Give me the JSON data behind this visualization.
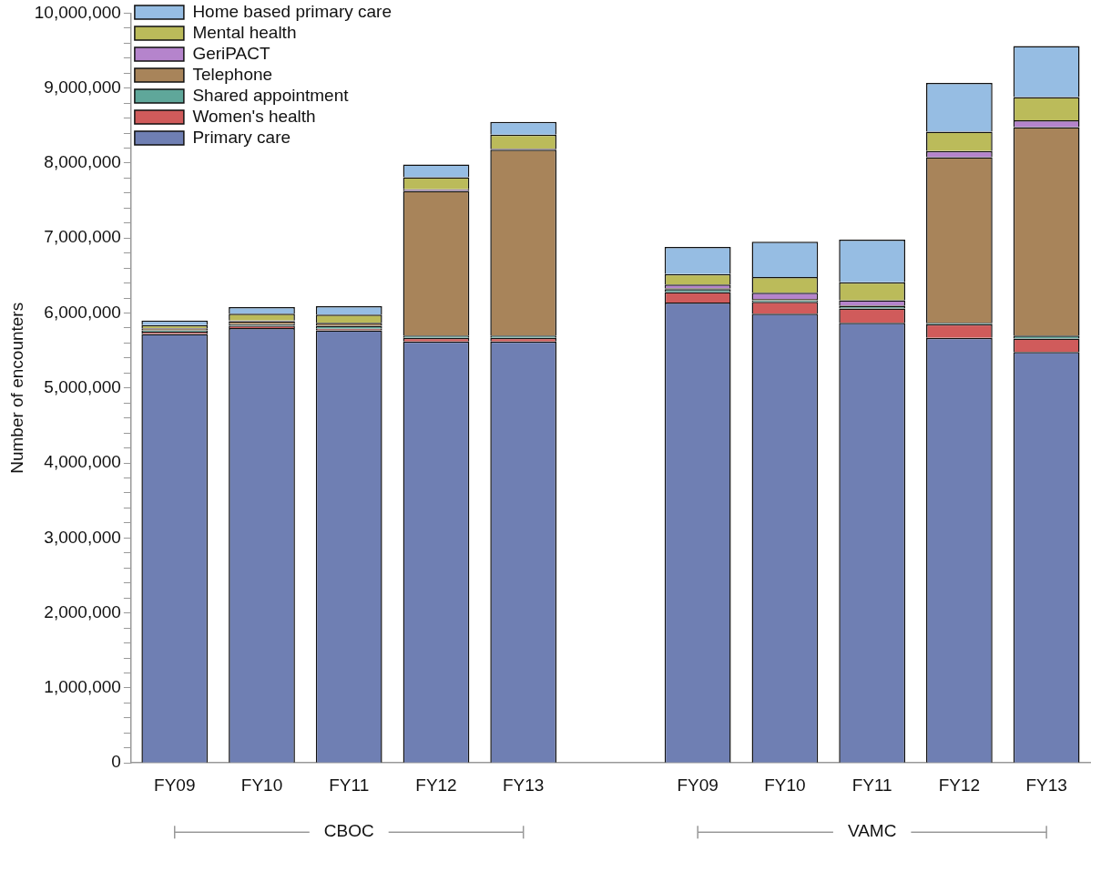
{
  "chart_data": {
    "type": "bar",
    "stacked": true,
    "ylabel": "Number of encounters",
    "categories": [
      "FY09",
      "FY10",
      "FY11",
      "FY12",
      "FY13",
      null,
      "FY09",
      "FY10",
      "FY11",
      "FY12",
      "FY13"
    ],
    "series": [
      {
        "name": "Primary care",
        "color": "#6f7fb3",
        "values": [
          5720000,
          5800000,
          5770000,
          5620000,
          5620000,
          null,
          6140000,
          5990000,
          5870000,
          5670000,
          5480000
        ]
      },
      {
        "name": "Women's health",
        "color": "#d05b5b",
        "values": [
          30000,
          30000,
          20000,
          50000,
          50000,
          null,
          140000,
          160000,
          190000,
          180000,
          180000
        ]
      },
      {
        "name": "Shared appointment",
        "color": "#5fa79a",
        "values": [
          20000,
          20000,
          40000,
          30000,
          30000,
          null,
          40000,
          20000,
          30000,
          20000,
          40000
        ]
      },
      {
        "name": "Telephone",
        "color": "#a8845a",
        "values": [
          20000,
          40000,
          40000,
          1930000,
          2480000,
          null,
          10000,
          20000,
          10000,
          2210000,
          2780000
        ]
      },
      {
        "name": "GeriPACT",
        "color": "#b584cc",
        "values": [
          10000,
          10000,
          null,
          20000,
          10000,
          null,
          50000,
          80000,
          70000,
          80000,
          90000
        ]
      },
      {
        "name": "Mental health",
        "color": "#bbbb5a",
        "values": [
          40000,
          90000,
          110000,
          160000,
          190000,
          null,
          140000,
          210000,
          240000,
          260000,
          310000
        ]
      },
      {
        "name": "Home based primary care",
        "color": "#96bde3",
        "values": [
          60000,
          90000,
          110000,
          170000,
          170000,
          null,
          360000,
          470000,
          570000,
          650000,
          680000
        ]
      }
    ],
    "ylim": [
      0,
      10000000
    ],
    "yticks": [
      {
        "value": 0,
        "label": "0"
      },
      {
        "value": 200000,
        "label": null
      },
      {
        "value": 400000,
        "label": null
      },
      {
        "value": 600000,
        "label": null
      },
      {
        "value": 800000,
        "label": null
      },
      {
        "value": 1000000,
        "label": "1,000,000"
      },
      {
        "value": 1200000,
        "label": null
      },
      {
        "value": 1400000,
        "label": null
      },
      {
        "value": 1600000,
        "label": null
      },
      {
        "value": 1800000,
        "label": null
      },
      {
        "value": 2000000,
        "label": "2,000,000"
      },
      {
        "value": 2200000,
        "label": null
      },
      {
        "value": 2400000,
        "label": null
      },
      {
        "value": 2600000,
        "label": null
      },
      {
        "value": 2800000,
        "label": null
      },
      {
        "value": 3000000,
        "label": "3,000,000"
      },
      {
        "value": 3200000,
        "label": null
      },
      {
        "value": 3400000,
        "label": null
      },
      {
        "value": 3600000,
        "label": null
      },
      {
        "value": 3800000,
        "label": null
      },
      {
        "value": 4000000,
        "label": "4,000,000"
      },
      {
        "value": 4200000,
        "label": null
      },
      {
        "value": 4400000,
        "label": null
      },
      {
        "value": 4600000,
        "label": null
      },
      {
        "value": 4800000,
        "label": null
      },
      {
        "value": 5000000,
        "label": "5,000,000"
      },
      {
        "value": 5200000,
        "label": null
      },
      {
        "value": 5400000,
        "label": null
      },
      {
        "value": 5600000,
        "label": null
      },
      {
        "value": 5800000,
        "label": null
      },
      {
        "value": 6000000,
        "label": "6,000,000"
      },
      {
        "value": 6200000,
        "label": null
      },
      {
        "value": 6400000,
        "label": null
      },
      {
        "value": 6600000,
        "label": null
      },
      {
        "value": 6800000,
        "label": null
      },
      {
        "value": 7000000,
        "label": "7,000,000"
      },
      {
        "value": 7200000,
        "label": null
      },
      {
        "value": 7400000,
        "label": null
      },
      {
        "value": 7600000,
        "label": null
      },
      {
        "value": 7800000,
        "label": null
      },
      {
        "value": 8000000,
        "label": "8,000,000"
      },
      {
        "value": 8200000,
        "label": null
      },
      {
        "value": 8400000,
        "label": null
      },
      {
        "value": 8600000,
        "label": null
      },
      {
        "value": 8800000,
        "label": null
      },
      {
        "value": 9000000,
        "label": "9,000,000"
      },
      {
        "value": 9200000,
        "label": null
      },
      {
        "value": 9400000,
        "label": null
      },
      {
        "value": 9600000,
        "label": null
      },
      {
        "value": 9800000,
        "label": null
      },
      {
        "value": 10000000,
        "label": "10,000,000"
      }
    ],
    "grid": false,
    "legend": "top left",
    "annotations": [
      "CBOC",
      "VAMC"
    ]
  }
}
